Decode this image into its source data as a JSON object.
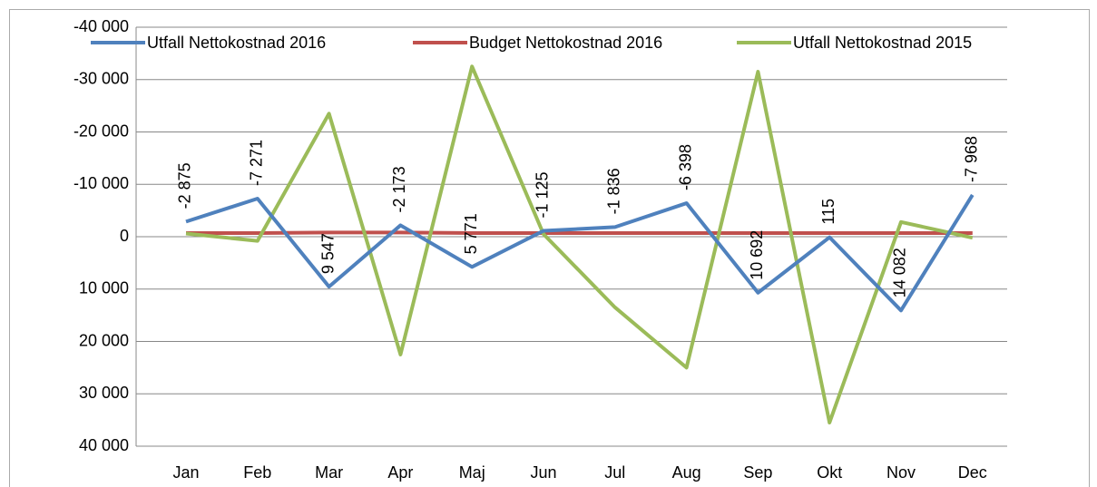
{
  "chart_data": {
    "type": "line",
    "categories": [
      "Jan",
      "Feb",
      "Mar",
      "Apr",
      "Maj",
      "Jun",
      "Jul",
      "Aug",
      "Sep",
      "Okt",
      "Nov",
      "Dec"
    ],
    "series": [
      {
        "name": "Utfall Nettokostnad 2016",
        "color": "#4f81bd",
        "values": [
          -2875,
          -7271,
          9547,
          -2173,
          5771,
          -1125,
          -1836,
          -6398,
          10692,
          115,
          14082,
          -7968
        ],
        "value_labels": [
          "-2 875",
          "-7 271",
          "9 547",
          "-2 173",
          "5 771",
          "-1 125",
          "-1 836",
          "-6 398",
          "10 692",
          "115",
          "14 082",
          "-7 968"
        ]
      },
      {
        "name": "Budget Nettokostnad 2016",
        "color": "#c0504d",
        "values": [
          -700,
          -700,
          -800,
          -800,
          -700,
          -700,
          -700,
          -700,
          -700,
          -700,
          -700,
          -700
        ]
      },
      {
        "name": "Utfall Nettokostnad 2015",
        "color": "#9bbb59",
        "values": [
          -600,
          800,
          -23500,
          22500,
          -32500,
          -500,
          13500,
          25000,
          -31500,
          35500,
          -2800,
          200
        ]
      }
    ],
    "ylim": [
      -40000,
      40000
    ],
    "y_reversed": true,
    "yticks": [
      {
        "value": -40000,
        "label": "-40 000"
      },
      {
        "value": -30000,
        "label": "-30 000"
      },
      {
        "value": -20000,
        "label": "-20 000"
      },
      {
        "value": -10000,
        "label": "-10 000"
      },
      0,
      {
        "value": 10000,
        "label": "10 000"
      },
      {
        "value": 20000,
        "label": "20 000"
      },
      {
        "value": 30000,
        "label": "30 000"
      },
      {
        "value": 40000,
        "label": "40 000"
      }
    ],
    "grid": true,
    "legend": "top"
  }
}
